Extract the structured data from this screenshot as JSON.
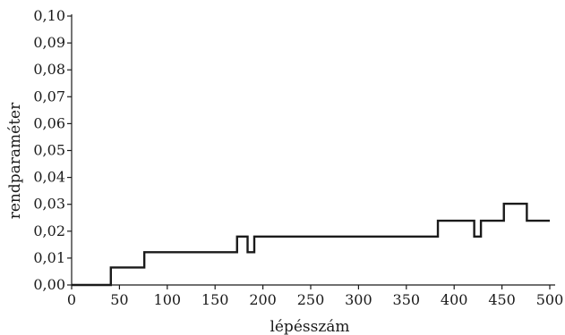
{
  "chart_data": {
    "type": "line",
    "title": "",
    "xlabel": "lépésszám",
    "ylabel": "rendparaméter",
    "xlim": [
      0,
      500
    ],
    "ylim": [
      0,
      0.1
    ],
    "x_ticks": [
      0,
      50,
      100,
      150,
      200,
      250,
      300,
      350,
      400,
      450,
      500
    ],
    "x_tick_labels": [
      "0",
      "50",
      "100",
      "150",
      "200",
      "250",
      "300",
      "350",
      "400",
      "450",
      "500"
    ],
    "y_ticks": [
      0,
      0.01,
      0.02,
      0.03,
      0.04,
      0.05,
      0.06,
      0.07,
      0.08,
      0.09,
      0.1
    ],
    "y_tick_labels": [
      "0,00",
      "0,01",
      "0,02",
      "0,03",
      "0,04",
      "0,05",
      "0,06",
      "0,07",
      "0,08",
      "0,09",
      "0,10"
    ],
    "grid": false,
    "series": [
      {
        "step": true,
        "color": "#1a1a1a",
        "points": [
          [
            0,
            0
          ],
          [
            41,
            0
          ],
          [
            41,
            0.0065
          ],
          [
            76,
            0.0065
          ],
          [
            76,
            0.0122
          ],
          [
            173,
            0.0122
          ],
          [
            173,
            0.018
          ],
          [
            184,
            0.018
          ],
          [
            184,
            0.0122
          ],
          [
            191,
            0.0122
          ],
          [
            191,
            0.018
          ],
          [
            383,
            0.018
          ],
          [
            383,
            0.0239
          ],
          [
            421,
            0.0239
          ],
          [
            421,
            0.018
          ],
          [
            428,
            0.018
          ],
          [
            428,
            0.0239
          ],
          [
            452,
            0.0239
          ],
          [
            452,
            0.0302
          ],
          [
            476,
            0.0302
          ],
          [
            476,
            0.0239
          ],
          [
            500,
            0.0239
          ]
        ]
      }
    ]
  }
}
